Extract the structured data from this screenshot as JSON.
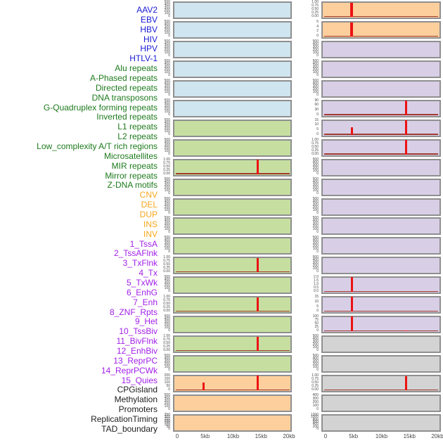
{
  "figure": {
    "x_axis_ticks": [
      "0",
      "5kb",
      "10kb",
      "15kb",
      "20kb"
    ],
    "x_range_kb": [
      0,
      20
    ]
  },
  "palette": {
    "background": "#ffffff",
    "panel_border": "#8f8f8f",
    "spike": "#ec1313",
    "baseline": "#a23b2e",
    "tick_text": "#4a4a4a",
    "axis_text": "#4a4a4a"
  },
  "categories": {
    "virus": {
      "label_color": "#1a1ad6",
      "panel_bg": "#cfe5ef"
    },
    "repeat": {
      "label_color": "#1d7a1d",
      "panel_bg": "#c6dfa1"
    },
    "sv": {
      "label_color": "#f5a71c",
      "panel_bg": "#fccf9d"
    },
    "chromhmm": {
      "label_color": "#a21fe8",
      "panel_bg": "#d8cfe7"
    },
    "other": {
      "label_color": "#1e1e1e",
      "panel_bg": "#d3d3d3"
    }
  },
  "tick_sets": {
    "std500": [
      "500",
      "400",
      "300",
      "200",
      "100",
      "0"
    ],
    "unit": [
      "1.00",
      "0.75",
      "0.50",
      "0.25",
      "0.00"
    ],
    "six": [
      "6",
      "4",
      "2",
      "0"
    ],
    "ninety": [
      "90",
      "60",
      "30",
      "0"
    ],
    "fifteen": [
      "15",
      "10",
      "5",
      "0"
    ],
    "two": [
      "2.0",
      "1.5",
      "1.0",
      "0.5",
      "0.0"
    ],
    "hundred": [
      "100",
      "75",
      "50",
      "25",
      "0"
    ],
    "cnv": [
      "200",
      "150",
      "100",
      "50",
      "0"
    ],
    "dup": [
      "350",
      "300",
      "250",
      "200",
      "150",
      "100",
      "50",
      "0"
    ],
    "repl": [
      "400",
      "300",
      "200",
      "100",
      "0"
    ],
    "tad": [
      "1200",
      "1000",
      "800",
      "600",
      "400",
      "200",
      "0"
    ]
  },
  "chart_data": {
    "type": "line",
    "x_axis_ticks": [
      "0",
      "5kb",
      "10kb",
      "15kb",
      "20kb"
    ],
    "x_range_kb": [
      0,
      20
    ],
    "columns": [
      {
        "panels": [
          {
            "label": "AAV2",
            "category": "virus",
            "y_ticks": "std500",
            "spikes": [],
            "baseline": false
          },
          {
            "label": "EBV",
            "category": "virus",
            "y_ticks": "std500",
            "spikes": [],
            "baseline": false
          },
          {
            "label": "HBV",
            "category": "virus",
            "y_ticks": "std500",
            "spikes": [],
            "baseline": false
          },
          {
            "label": "HIV",
            "category": "virus",
            "y_ticks": "std500",
            "spikes": [],
            "baseline": false
          },
          {
            "label": "HPV",
            "category": "virus",
            "y_ticks": "std500",
            "spikes": [],
            "baseline": false
          },
          {
            "label": "HTLV-1",
            "category": "virus",
            "y_ticks": "std500",
            "spikes": [],
            "baseline": false
          },
          {
            "label": "Alu repeats",
            "category": "repeat",
            "y_ticks": "std500",
            "spikes": [],
            "baseline": false
          },
          {
            "label": "A-Phased repeats",
            "category": "repeat",
            "y_ticks": "std500",
            "spikes": [],
            "baseline": false
          },
          {
            "label": "Directed repeats",
            "category": "repeat",
            "y_ticks": "unit",
            "spikes": [
              {
                "x_kb": 14.4,
                "height_pct": 96,
                "w": 3
              }
            ],
            "baseline": true
          },
          {
            "label": "DNA transposons",
            "category": "repeat",
            "y_ticks": "std500",
            "spikes": [],
            "baseline": false
          },
          {
            "label": "G-Quadruplex forming repeats",
            "category": "repeat",
            "y_ticks": "std500",
            "spikes": [],
            "baseline": false
          },
          {
            "label": "Inverted repeats",
            "category": "repeat",
            "y_ticks": "std500",
            "spikes": [],
            "baseline": false
          },
          {
            "label": "L1 repeats",
            "category": "repeat",
            "y_ticks": "std500",
            "spikes": [],
            "baseline": false
          },
          {
            "label": "L2 repeats",
            "category": "repeat",
            "y_ticks": "unit",
            "spikes": [
              {
                "x_kb": 14.4,
                "height_pct": 96,
                "w": 3
              }
            ],
            "baseline": true
          },
          {
            "label": "Low_complexity A/T rich regions",
            "category": "repeat",
            "y_ticks": "std500",
            "spikes": [],
            "baseline": false
          },
          {
            "label": "Microsatellites",
            "category": "repeat",
            "y_ticks": "unit",
            "spikes": [
              {
                "x_kb": 14.4,
                "height_pct": 96,
                "w": 3
              }
            ],
            "baseline": true
          },
          {
            "label": "MIR repeats",
            "category": "repeat",
            "y_ticks": "std500",
            "spikes": [],
            "baseline": false
          },
          {
            "label": "Mirror repeats",
            "category": "repeat",
            "y_ticks": "unit",
            "spikes": [
              {
                "x_kb": 14.4,
                "height_pct": 96,
                "w": 3
              }
            ],
            "baseline": true
          },
          {
            "label": "Z-DNA motifs",
            "category": "repeat",
            "y_ticks": "std500",
            "spikes": [],
            "baseline": false
          },
          {
            "label": "CNV",
            "category": "sv",
            "y_ticks": "cnv",
            "spikes": [
              {
                "x_kb": 4.7,
                "height_pct": 55,
                "w": 3
              },
              {
                "x_kb": 14.4,
                "height_pct": 100,
                "w": 3
              }
            ],
            "baseline": true
          },
          {
            "label": "DEL",
            "category": "sv",
            "y_ticks": "std500",
            "spikes": [],
            "baseline": false
          },
          {
            "label": "DUP",
            "category": "sv",
            "y_ticks": "dup",
            "spikes": [],
            "baseline": false
          }
        ]
      },
      {
        "panels": [
          {
            "label": "INS",
            "category": "sv",
            "y_ticks": "unit",
            "spikes": [
              {
                "x_kb": 4.7,
                "height_pct": 97,
                "w": 4
              }
            ],
            "baseline": true
          },
          {
            "label": "INV",
            "category": "sv",
            "y_ticks": "six",
            "spikes": [
              {
                "x_kb": 4.7,
                "height_pct": 97,
                "w": 4
              }
            ],
            "baseline": true
          },
          {
            "label": "1_TssA",
            "category": "chromhmm",
            "y_ticks": "std500",
            "spikes": [],
            "baseline": false
          },
          {
            "label": "2_TssAFlnk",
            "category": "chromhmm",
            "y_ticks": "std500",
            "spikes": [],
            "baseline": false
          },
          {
            "label": "3_TxFlnk",
            "category": "chromhmm",
            "y_ticks": "std500",
            "spikes": [],
            "baseline": false
          },
          {
            "label": "4_Tx",
            "category": "chromhmm",
            "y_ticks": "ninety",
            "spikes": [
              {
                "x_kb": 14.4,
                "height_pct": 100,
                "w": 3
              }
            ],
            "baseline": true
          },
          {
            "label": "5_TxWk",
            "category": "chromhmm",
            "y_ticks": "fifteen",
            "spikes": [
              {
                "x_kb": 4.7,
                "height_pct": 50,
                "w": 3
              },
              {
                "x_kb": 14.4,
                "height_pct": 100,
                "w": 3
              }
            ],
            "baseline": true
          },
          {
            "label": "6_EnhG",
            "category": "chromhmm",
            "y_ticks": "unit",
            "spikes": [
              {
                "x_kb": 14.4,
                "height_pct": 97,
                "w": 3
              }
            ],
            "baseline": true
          },
          {
            "label": "7_Enh",
            "category": "chromhmm",
            "y_ticks": "std500",
            "spikes": [],
            "baseline": false
          },
          {
            "label": "8_ZNF_Rpts",
            "category": "chromhmm",
            "y_ticks": "std500",
            "spikes": [],
            "baseline": false
          },
          {
            "label": "9_Het",
            "category": "chromhmm",
            "y_ticks": "std500",
            "spikes": [],
            "baseline": false
          },
          {
            "label": "10_TssBiv",
            "category": "chromhmm",
            "y_ticks": "std500",
            "spikes": [],
            "baseline": false
          },
          {
            "label": "11_BivFlnk",
            "category": "chromhmm",
            "y_ticks": "std500",
            "spikes": [],
            "baseline": false
          },
          {
            "label": "12_EnhBiv",
            "category": "chromhmm",
            "y_ticks": "std500",
            "spikes": [],
            "baseline": false
          },
          {
            "label": "13_ReprPC",
            "category": "chromhmm",
            "y_ticks": "two",
            "spikes": [
              {
                "x_kb": 4.7,
                "height_pct": 100,
                "w": 3
              }
            ],
            "baseline": true
          },
          {
            "label": "14_ReprPCWk",
            "category": "chromhmm",
            "y_ticks": "fifteen",
            "spikes": [
              {
                "x_kb": 4.7,
                "height_pct": 100,
                "w": 3
              }
            ],
            "baseline": true
          },
          {
            "label": "15_Quies",
            "category": "chromhmm",
            "y_ticks": "hundred",
            "spikes": [
              {
                "x_kb": 4.7,
                "height_pct": 100,
                "w": 3
              },
              {
                "x_kb": 14.4,
                "height_pct": 8,
                "w": 4
              }
            ],
            "baseline": true
          },
          {
            "label": "CPGisland",
            "category": "other",
            "y_ticks": "std500",
            "spikes": [],
            "baseline": false
          },
          {
            "label": "Methylation",
            "category": "other",
            "y_ticks": "std500",
            "spikes": [],
            "baseline": false
          },
          {
            "label": "Promoters",
            "category": "other",
            "y_ticks": "unit",
            "spikes": [
              {
                "x_kb": 14.4,
                "height_pct": 97,
                "w": 3
              }
            ],
            "baseline": true
          },
          {
            "label": "ReplicationTiming",
            "category": "other",
            "y_ticks": "repl",
            "spikes": [],
            "baseline": false
          },
          {
            "label": "TAD_boundary",
            "category": "other",
            "y_ticks": "tad",
            "spikes": [],
            "baseline": false
          }
        ]
      }
    ]
  }
}
